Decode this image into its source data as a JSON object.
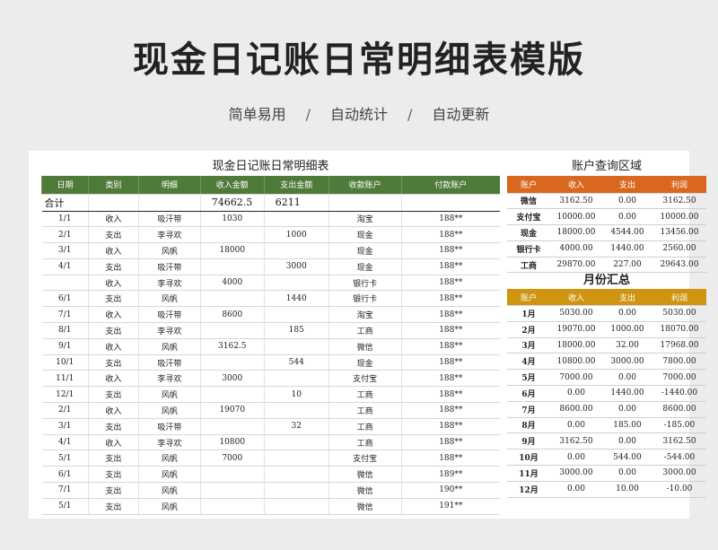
{
  "header": {
    "title": "现金日记账日常明细表模版",
    "tags": [
      "简单易用",
      "自动统计",
      "自动更新"
    ]
  },
  "ledger": {
    "title": "现金日记账日常明细表",
    "columns": [
      "日期",
      "类别",
      "明细",
      "收入金额",
      "支出金额",
      "收款账户",
      "付款账户"
    ],
    "total": {
      "label": "合计",
      "income": "74662.5",
      "expense": "6211"
    },
    "rows": [
      [
        "1/1",
        "收入",
        "吸汗带",
        "1030",
        "",
        "淘宝",
        "188**"
      ],
      [
        "2/1",
        "支出",
        "李寻欢",
        "",
        "1000",
        "现金",
        "188**"
      ],
      [
        "3/1",
        "收入",
        "风帆",
        "18000",
        "",
        "现金",
        "188**"
      ],
      [
        "4/1",
        "支出",
        "吸汗带",
        "",
        "3000",
        "现金",
        "188**"
      ],
      [
        "",
        "收入",
        "李寻欢",
        "4000",
        "",
        "银行卡",
        "188**"
      ],
      [
        "6/1",
        "支出",
        "风帆",
        "",
        "1440",
        "银行卡",
        "188**"
      ],
      [
        "7/1",
        "收入",
        "吸汗带",
        "8600",
        "",
        "淘宝",
        "188**"
      ],
      [
        "8/1",
        "支出",
        "李寻欢",
        "",
        "185",
        "工商",
        "188**"
      ],
      [
        "9/1",
        "收入",
        "风帆",
        "3162.5",
        "",
        "微信",
        "188**"
      ],
      [
        "10/1",
        "支出",
        "吸汗带",
        "",
        "544",
        "现金",
        "188**"
      ],
      [
        "11/1",
        "收入",
        "李寻欢",
        "3000",
        "",
        "支付宝",
        "188**"
      ],
      [
        "12/1",
        "支出",
        "风帆",
        "",
        "10",
        "工商",
        "188**"
      ],
      [
        "2/1",
        "收入",
        "风帆",
        "19070",
        "",
        "工商",
        "188**"
      ],
      [
        "3/1",
        "支出",
        "吸汗带",
        "",
        "32",
        "工商",
        "188**"
      ],
      [
        "4/1",
        "收入",
        "李寻欢",
        "10800",
        "",
        "工商",
        "188**"
      ],
      [
        "5/1",
        "支出",
        "风帆",
        "7000",
        "",
        "支付宝",
        "188**"
      ],
      [
        "6/1",
        "支出",
        "风帆",
        "",
        "",
        "微信",
        "189**"
      ],
      [
        "7/1",
        "支出",
        "风帆",
        "",
        "",
        "微信",
        "190**"
      ],
      [
        "5/1",
        "支出",
        "风帆",
        "",
        "",
        "微信",
        "191**"
      ]
    ]
  },
  "query": {
    "title": "账户查询区域",
    "columns": [
      "账户",
      "收入",
      "支出",
      "利润"
    ],
    "rows": [
      [
        "微信",
        "3162.50",
        "0.00",
        "3162.50"
      ],
      [
        "支付宝",
        "10000.00",
        "0.00",
        "10000.00"
      ],
      [
        "现金",
        "18000.00",
        "4544.00",
        "13456.00"
      ],
      [
        "银行卡",
        "4000.00",
        "1440.00",
        "2560.00"
      ],
      [
        "工商",
        "29870.00",
        "227.00",
        "29643.00"
      ]
    ]
  },
  "monthly": {
    "title": "月份汇总",
    "columns": [
      "账户",
      "收入",
      "支出",
      "利润"
    ],
    "rows": [
      [
        "1月",
        "5030.00",
        "0.00",
        "5030.00"
      ],
      [
        "2月",
        "19070.00",
        "1000.00",
        "18070.00"
      ],
      [
        "3月",
        "18000.00",
        "32.00",
        "17968.00"
      ],
      [
        "4月",
        "10800.00",
        "3000.00",
        "7800.00"
      ],
      [
        "5月",
        "7000.00",
        "0.00",
        "7000.00"
      ],
      [
        "6月",
        "0.00",
        "1440.00",
        "-1440.00"
      ],
      [
        "7月",
        "8600.00",
        "0.00",
        "8600.00"
      ],
      [
        "8月",
        "0.00",
        "185.00",
        "-185.00"
      ],
      [
        "9月",
        "3162.50",
        "0.00",
        "3162.50"
      ],
      [
        "10月",
        "0.00",
        "544.00",
        "-544.00"
      ],
      [
        "11月",
        "3000.00",
        "0.00",
        "3000.00"
      ],
      [
        "12月",
        "0.00",
        "10.00",
        "-10.00"
      ]
    ]
  }
}
